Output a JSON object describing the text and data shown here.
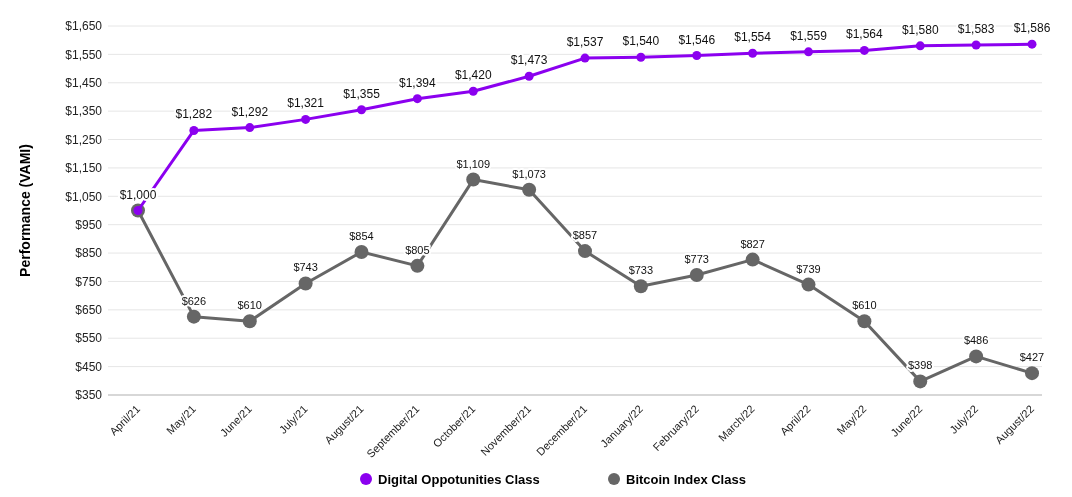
{
  "chart_data": {
    "type": "line",
    "ylabel": "Performance (VAMI)",
    "categories": [
      "April/21",
      "May/21",
      "June/21",
      "July/21",
      "August/21",
      "September/21",
      "October/21",
      "November/21",
      "December/21",
      "January/22",
      "February/22",
      "March/22",
      "April/22",
      "May/22",
      "June/22",
      "July/22",
      "August/22"
    ],
    "series": [
      {
        "name": "Digital Oppotunities Class",
        "color": "#8b00ef",
        "values": [
          1000,
          1282,
          1292,
          1321,
          1355,
          1394,
          1420,
          1473,
          1537,
          1540,
          1546,
          1554,
          1559,
          1564,
          1580,
          1583,
          1586
        ],
        "value_labels": [
          "$1,000",
          "$1,282",
          "$1,292",
          "$1,321",
          "$1,355",
          "$1,394",
          "$1,420",
          "$1,473",
          "$1,537",
          "$1,540",
          "$1,546",
          "$1,554",
          "$1,559",
          "$1,564",
          "$1,580",
          "$1,583",
          "$1,586"
        ]
      },
      {
        "name": "Bitcoin Index Class",
        "color": "#666666",
        "values": [
          1000,
          626,
          610,
          743,
          854,
          805,
          1109,
          1073,
          857,
          733,
          773,
          827,
          739,
          610,
          398,
          486,
          427
        ],
        "value_labels": [
          null,
          "$626",
          "$610",
          "$743",
          "$854",
          "$805",
          "$1,109",
          "$1,073",
          "$857",
          "$733",
          "$773",
          "$827",
          "$739",
          "$610",
          "$398",
          "$486",
          "$427"
        ]
      }
    ],
    "ylim": [
      350,
      1650
    ],
    "yticks": [
      {
        "value": 350,
        "label": "$350"
      },
      {
        "value": 450,
        "label": "$450"
      },
      {
        "value": 550,
        "label": "$550"
      },
      {
        "value": 650,
        "label": "$650"
      },
      {
        "value": 750,
        "label": "$750"
      },
      {
        "value": 850,
        "label": "$850"
      },
      {
        "value": 950,
        "label": "$950"
      },
      {
        "value": 1050,
        "label": "$1,050"
      },
      {
        "value": 1150,
        "label": "$1,150"
      },
      {
        "value": 1250,
        "label": "$1,250"
      },
      {
        "value": 1350,
        "label": "$1,350"
      },
      {
        "value": 1450,
        "label": "$1,450"
      },
      {
        "value": 1550,
        "label": "$1,550"
      },
      {
        "value": 1650,
        "label": "$1,650"
      }
    ],
    "grid": "y",
    "legend": "bottom",
    "marker": "circle",
    "line_style": "solid"
  }
}
